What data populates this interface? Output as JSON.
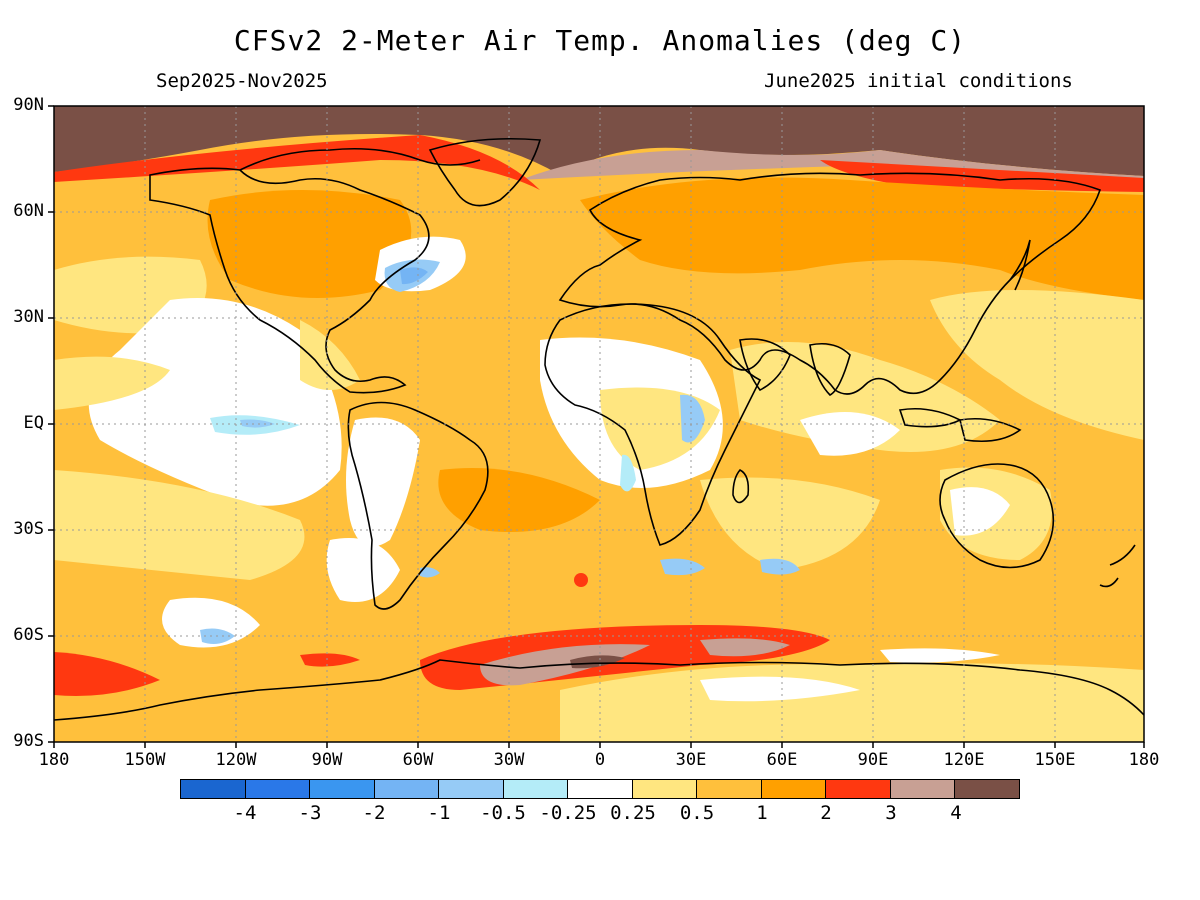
{
  "title": "CFSv2 2-Meter Air Temp. Anomalies (deg C)",
  "period": "Sep2025-Nov2025",
  "initial_conditions": "June2025 initial conditions",
  "lat_labels": [
    "90N",
    "60N",
    "30N",
    "EQ",
    "30S",
    "60S",
    "90S"
  ],
  "lon_labels": [
    "180",
    "150W",
    "120W",
    "90W",
    "60W",
    "30W",
    "0",
    "30E",
    "60E",
    "90E",
    "120E",
    "150E",
    "180"
  ],
  "colorbar": {
    "colors": [
      "#1a66d0",
      "#2a78e8",
      "#3a96f0",
      "#74b4f4",
      "#96cbf6",
      "#b4ecf8",
      "#ffffff",
      "#ffe680",
      "#ffc03c",
      "#ffa000",
      "#ff3810",
      "#c8a094",
      "#7a5046"
    ],
    "labels": [
      "-4",
      "-3",
      "-2",
      "-1",
      "-0.5",
      "-0.25",
      "0.25",
      "0.5",
      "1",
      "2",
      "3",
      "4"
    ]
  },
  "map": {
    "background_anomaly_color": "#ffc03c",
    "land_outline_color": "#000000",
    "grid": true
  }
}
